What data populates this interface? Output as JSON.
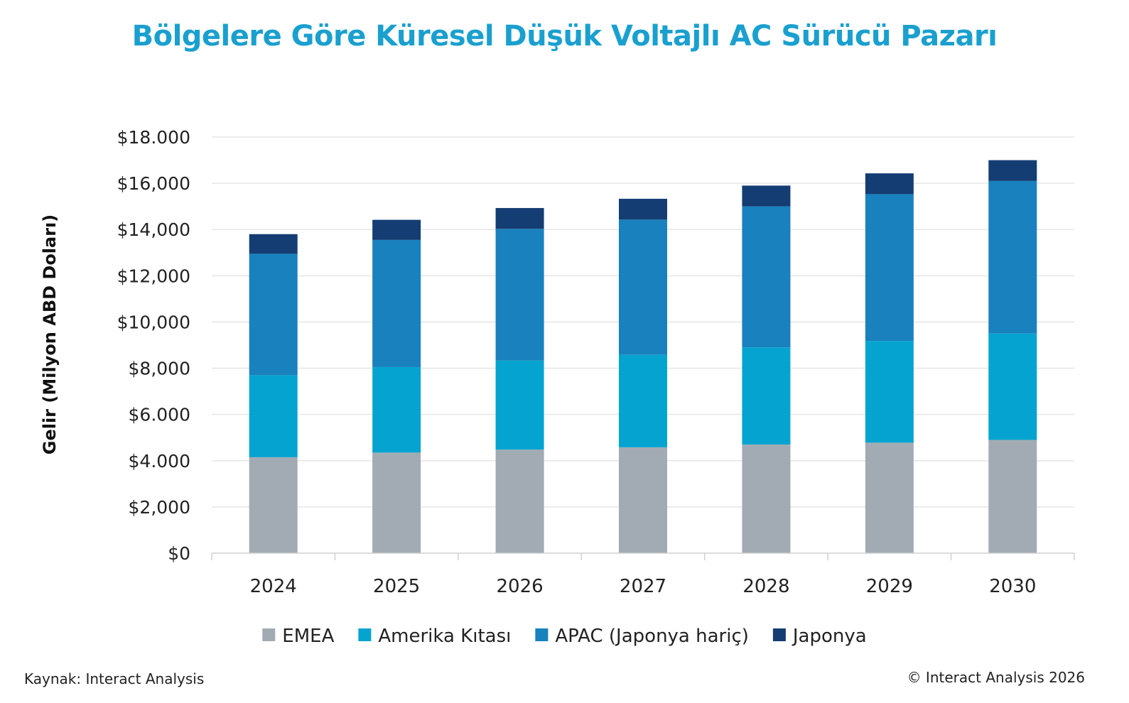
{
  "chart_data": {
    "type": "bar",
    "stacked": true,
    "title": "Bölgelere Göre Küresel Düşük Voltajlı AC Sürücü Pazarı",
    "ylabel": "Gelir (Milyon ABD Doları)",
    "xlabel": "",
    "categories": [
      "2024",
      "2025",
      "2026",
      "2027",
      "2028",
      "2029",
      "2030"
    ],
    "ylim": [
      0,
      18000
    ],
    "yticks": [
      0,
      2000,
      4000,
      6000,
      8000,
      10000,
      12000,
      14000,
      16000,
      18000
    ],
    "ytick_labels": [
      "$0",
      "$2,000",
      "$4.000",
      "$6.000",
      "$8,000",
      "$10,000",
      "$12,000",
      "$14,000",
      "$16,000",
      "$18.000"
    ],
    "grid": true,
    "legend_position": "bottom",
    "series": [
      {
        "name": "EMEA",
        "color": "#a2abb4",
        "values": [
          4150,
          4350,
          4480,
          4580,
          4700,
          4780,
          4900
        ]
      },
      {
        "name": "Amerika Kıtası",
        "color": "#05a4d0",
        "values": [
          3550,
          3700,
          3850,
          4000,
          4200,
          4400,
          4600
        ]
      },
      {
        "name": "APAC (Japonya hariç)",
        "color": "#1881be",
        "values": [
          5250,
          5500,
          5700,
          5850,
          6100,
          6350,
          6600
        ]
      },
      {
        "name": "Japonya",
        "color": "#143d73",
        "values": [
          850,
          870,
          900,
          900,
          900,
          900,
          900
        ]
      }
    ],
    "title_color": "#1aa0cf",
    "gridline_color": "#e6e6e6"
  },
  "footer": {
    "source": "Kaynak: Interact Analysis",
    "copyright": "© Interact Analysis 2026"
  }
}
